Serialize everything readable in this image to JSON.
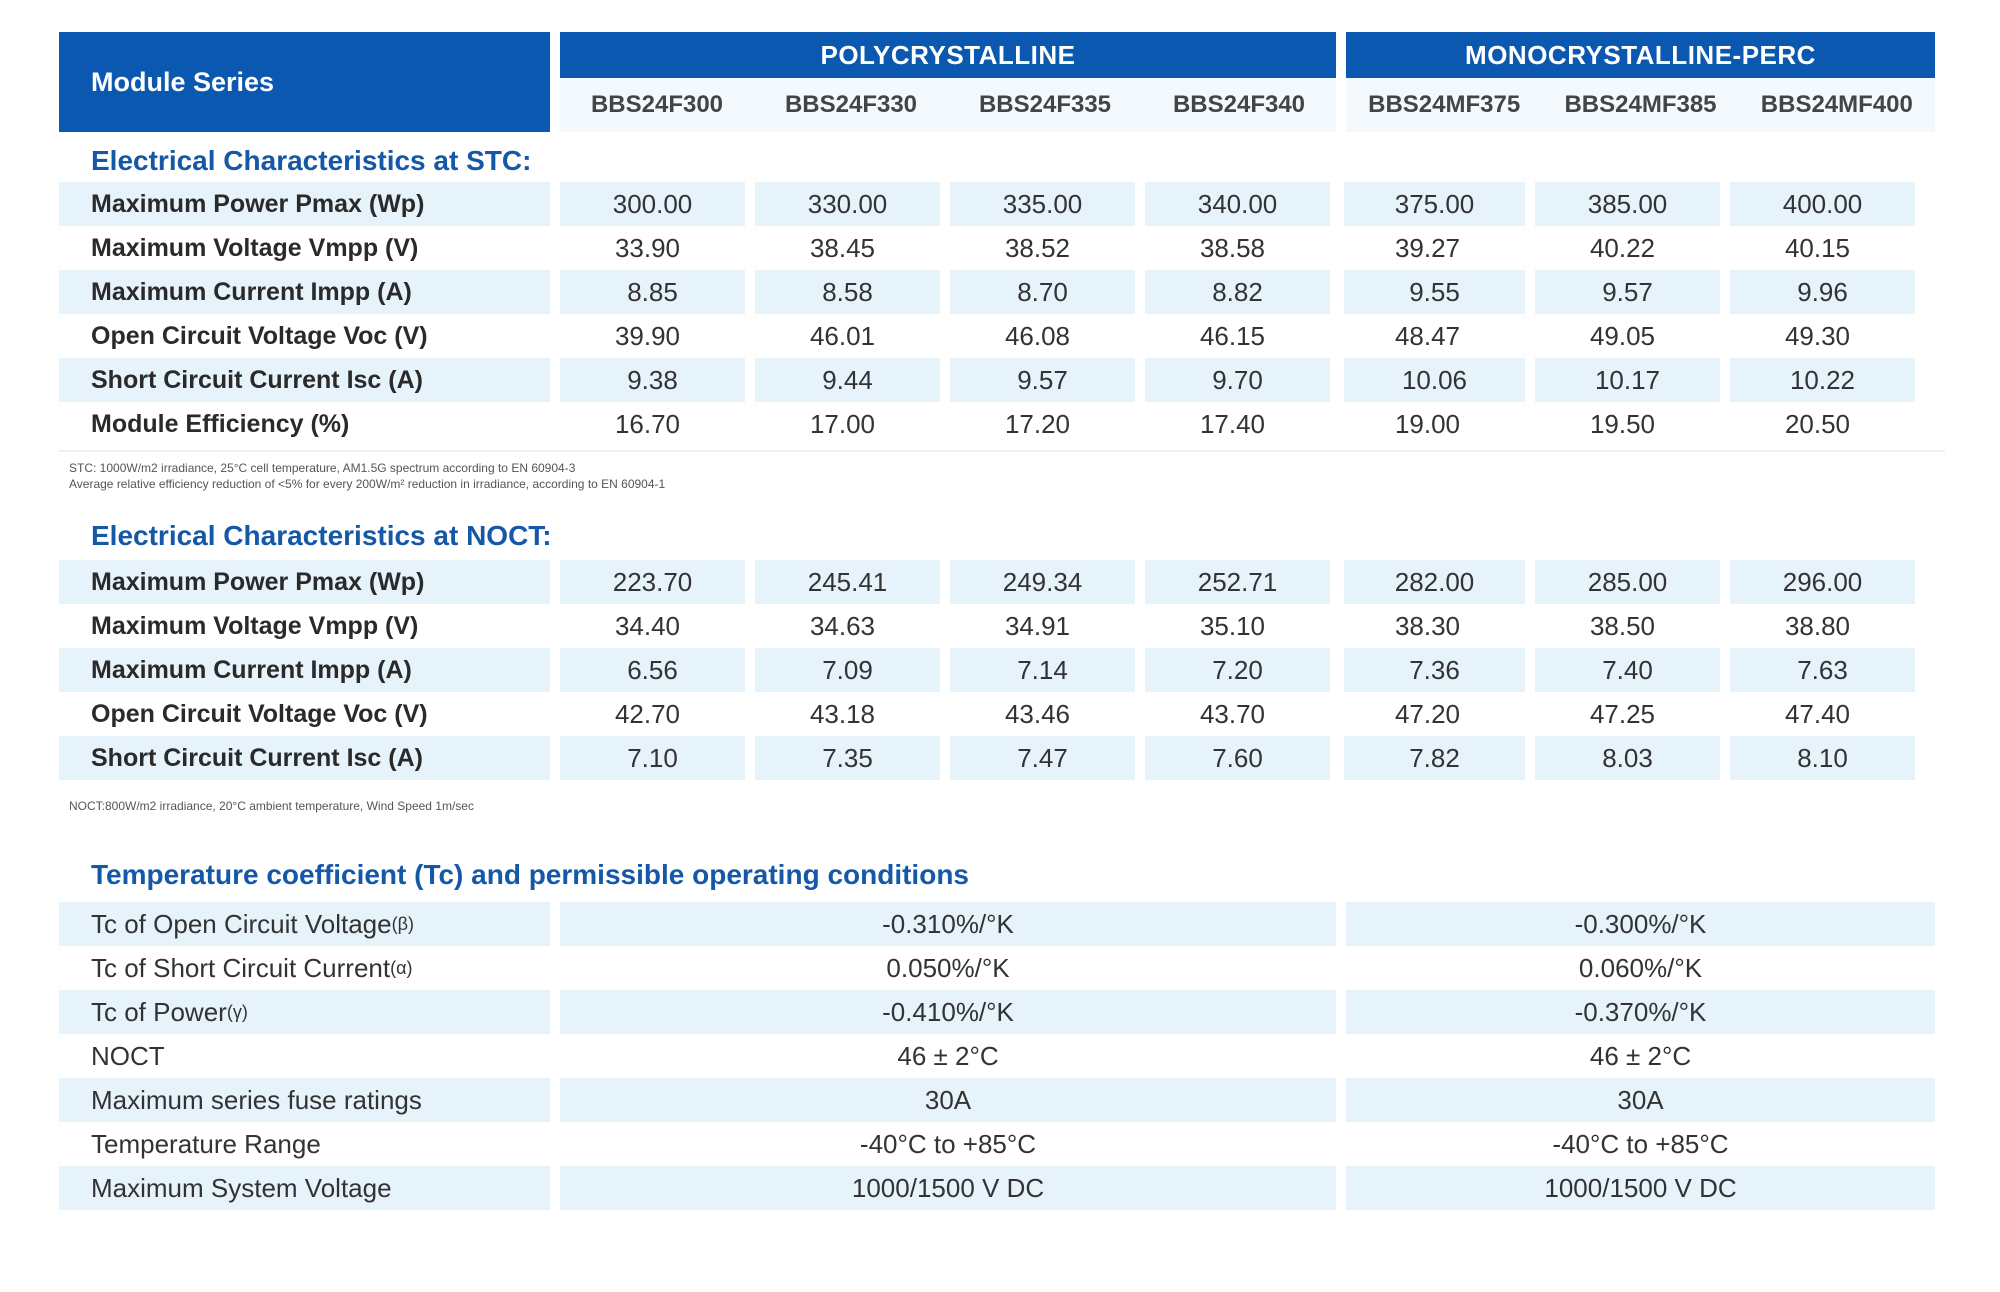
{
  "header": {
    "module_series": "Module Series",
    "group1": "POLYCRYSTALLINE",
    "group2": "MONOCRYSTALLINE-PERC",
    "models": [
      "BBS24F300",
      "BBS24F330",
      "BBS24F335",
      "BBS24F340",
      "BBS24MF375",
      "BBS24MF385",
      "BBS24MF400"
    ]
  },
  "stc": {
    "title": "Electrical Characteristics at STC:",
    "rows": [
      {
        "label": "Maximum Power Pmax (Wp)",
        "values": [
          "300.00",
          "330.00",
          "335.00",
          "340.00",
          "375.00",
          "385.00",
          "400.00"
        ]
      },
      {
        "label": "Maximum Voltage Vmpp (V)",
        "values": [
          "33.90",
          "38.45",
          "38.52",
          "38.58",
          "39.27",
          "40.22",
          "40.15"
        ]
      },
      {
        "label": "Maximum Current Impp (A)",
        "values": [
          "8.85",
          "8.58",
          "8.70",
          "8.82",
          "9.55",
          "9.57",
          "9.96"
        ]
      },
      {
        "label": "Open Circuit Voltage Voc (V)",
        "values": [
          "39.90",
          "46.01",
          "46.08",
          "46.15",
          "48.47",
          "49.05",
          "49.30"
        ]
      },
      {
        "label": "Short Circuit Current Isc (A)",
        "values": [
          "9.38",
          "9.44",
          "9.57",
          "9.70",
          "10.06",
          "10.17",
          "10.22"
        ]
      },
      {
        "label": "Module Efficiency (%)",
        "values": [
          "16.70",
          "17.00",
          "17.20",
          "17.40",
          "19.00",
          "19.50",
          "20.50"
        ]
      }
    ],
    "note1": "STC: 1000W/m2 irradiance, 25°C cell temperature, AM1.5G spectrum according to EN 60904-3",
    "note2": "Average relative efficiency reduction of <5% for every 200W/m² reduction in irradiance, according to EN 60904-1"
  },
  "noct": {
    "title": "Electrical Characteristics at NOCT:",
    "rows": [
      {
        "label": "Maximum Power Pmax (Wp)",
        "values": [
          "223.70",
          "245.41",
          "249.34",
          "252.71",
          "282.00",
          "285.00",
          "296.00"
        ]
      },
      {
        "label": "Maximum Voltage Vmpp (V)",
        "values": [
          "34.40",
          "34.63",
          "34.91",
          "35.10",
          "38.30",
          "38.50",
          "38.80"
        ]
      },
      {
        "label": "Maximum Current Impp (A)",
        "values": [
          "6.56",
          "7.09",
          "7.14",
          "7.20",
          "7.36",
          "7.40",
          "7.63"
        ]
      },
      {
        "label": "Open Circuit Voltage Voc (V)",
        "values": [
          "42.70",
          "43.18",
          "43.46",
          "43.70",
          "47.20",
          "47.25",
          "47.40"
        ]
      },
      {
        "label": "Short Circuit Current Isc (A)",
        "values": [
          "7.10",
          "7.35",
          "7.47",
          "7.60",
          "7.82",
          "8.03",
          "8.10"
        ]
      }
    ],
    "note": "NOCT:800W/m2 irradiance, 20°C ambient temperature, Wind Speed 1m/sec"
  },
  "tc": {
    "title": "Temperature coefficient (Tc) and permissible operating  conditions",
    "rows": [
      {
        "label": "Tc of Open Circuit Voltage",
        "sym": "(β)",
        "poly": "-0.310%/°K",
        "mono": "-0.300%/°K"
      },
      {
        "label": "Tc of Short Circuit Current",
        "sym": "(α)",
        "poly": "0.050%/°K",
        "mono": "0.060%/°K"
      },
      {
        "label": "Tc of Power",
        "sym": "(γ)",
        "poly": "-0.410%/°K",
        "mono": "-0.370%/°K"
      },
      {
        "label": "NOCT",
        "sym": "",
        "poly": "46 ± 2°C",
        "mono": "46 ± 2°C"
      },
      {
        "label": "Maximum series fuse ratings",
        "sym": "",
        "poly": "30A",
        "mono": "30A"
      },
      {
        "label": "Temperature Range",
        "sym": "",
        "poly": "-40°C to +85°C",
        "mono": "-40°C to +85°C"
      },
      {
        "label": "Maximum System Voltage",
        "sym": "",
        "poly": "1000/1500 V DC",
        "mono": "1000/1500 V DC"
      }
    ]
  }
}
